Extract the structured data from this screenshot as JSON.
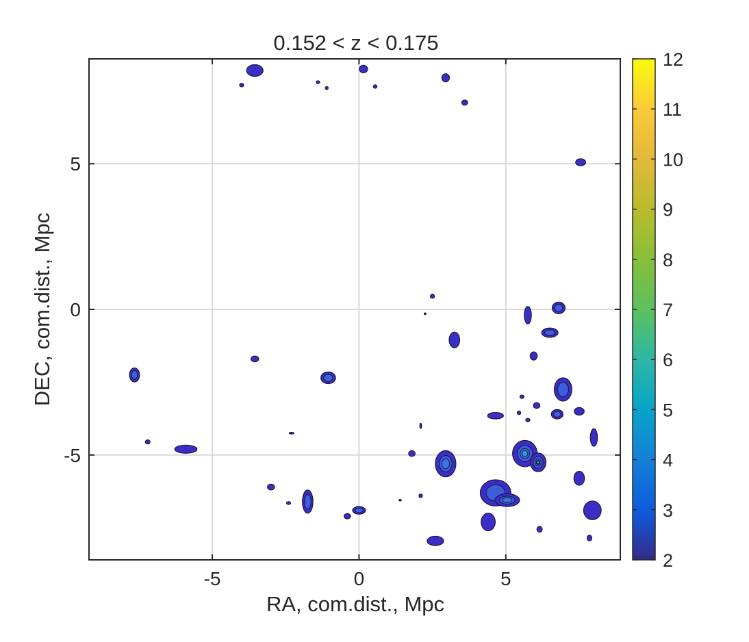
{
  "chart_data": {
    "type": "contour",
    "title": "0.152 < z < 0.175",
    "xlabel": "RA, com.dist., Mpc",
    "ylabel": "DEC, com.dist., Mpc",
    "xlim": [
      -9.2,
      8.9
    ],
    "ylim": [
      -8.6,
      8.6
    ],
    "xticks": [
      -5,
      0,
      5
    ],
    "xtick_labels": [
      "-5",
      "0",
      "5"
    ],
    "yticks": [
      -5,
      0,
      5
    ],
    "ytick_labels": [
      "-5",
      "0",
      "5"
    ],
    "grid": true,
    "colorbar": {
      "min": 2,
      "max": 12,
      "ticks": [
        2,
        3,
        4,
        5,
        6,
        7,
        8,
        9,
        10,
        11,
        12
      ],
      "tick_labels": [
        "2",
        "3",
        "4",
        "5",
        "6",
        "7",
        "8",
        "9",
        "10",
        "11",
        "12"
      ],
      "colormap": "parula"
    },
    "fill_color": "#3b2ec6",
    "outline_color": "#1a1640",
    "peak_color": "#3f7ae8",
    "blobs": [
      {
        "x": -3.55,
        "y": 8.2,
        "rx": 0.28,
        "ry": 0.2,
        "level": 2
      },
      {
        "x": -4.0,
        "y": 7.7,
        "rx": 0.07,
        "ry": 0.06,
        "level": 2
      },
      {
        "x": -1.4,
        "y": 7.8,
        "rx": 0.06,
        "ry": 0.05,
        "level": 2
      },
      {
        "x": -1.1,
        "y": 7.6,
        "rx": 0.05,
        "ry": 0.05,
        "level": 2
      },
      {
        "x": 0.15,
        "y": 8.25,
        "rx": 0.14,
        "ry": 0.13,
        "level": 2
      },
      {
        "x": 0.55,
        "y": 7.65,
        "rx": 0.06,
        "ry": 0.06,
        "level": 2
      },
      {
        "x": 2.95,
        "y": 7.95,
        "rx": 0.13,
        "ry": 0.14,
        "level": 2
      },
      {
        "x": 3.6,
        "y": 7.1,
        "rx": 0.1,
        "ry": 0.09,
        "level": 2
      },
      {
        "x": 7.55,
        "y": 5.05,
        "rx": 0.17,
        "ry": 0.12,
        "level": 2
      },
      {
        "x": 2.5,
        "y": 0.45,
        "rx": 0.07,
        "ry": 0.07,
        "level": 2
      },
      {
        "x": 3.25,
        "y": -1.05,
        "rx": 0.18,
        "ry": 0.27,
        "level": 2
      },
      {
        "x": 5.75,
        "y": -0.2,
        "rx": 0.12,
        "ry": 0.3,
        "level": 2
      },
      {
        "x": 6.8,
        "y": 0.05,
        "rx": 0.22,
        "ry": 0.2,
        "level": 3
      },
      {
        "x": 6.5,
        "y": -0.8,
        "rx": 0.28,
        "ry": 0.16,
        "level": 3
      },
      {
        "x": 5.95,
        "y": -1.6,
        "rx": 0.12,
        "ry": 0.14,
        "level": 2
      },
      {
        "x": -7.65,
        "y": -2.25,
        "rx": 0.17,
        "ry": 0.24,
        "level": 3
      },
      {
        "x": -3.55,
        "y": -1.7,
        "rx": 0.13,
        "ry": 0.1,
        "level": 2
      },
      {
        "x": -1.05,
        "y": -2.35,
        "rx": 0.25,
        "ry": 0.2,
        "level": 3
      },
      {
        "x": 6.95,
        "y": -2.75,
        "rx": 0.3,
        "ry": 0.4,
        "level": 3
      },
      {
        "x": 6.75,
        "y": -3.6,
        "rx": 0.2,
        "ry": 0.16,
        "level": 3
      },
      {
        "x": 6.05,
        "y": -3.3,
        "rx": 0.11,
        "ry": 0.1,
        "level": 2
      },
      {
        "x": 7.5,
        "y": -3.5,
        "rx": 0.17,
        "ry": 0.13,
        "level": 2
      },
      {
        "x": 4.65,
        "y": -3.65,
        "rx": 0.27,
        "ry": 0.11,
        "level": 2
      },
      {
        "x": 5.45,
        "y": -3.55,
        "rx": 0.06,
        "ry": 0.06,
        "level": 2
      },
      {
        "x": 5.75,
        "y": -3.8,
        "rx": 0.07,
        "ry": 0.06,
        "level": 2
      },
      {
        "x": 5.55,
        "y": -3.0,
        "rx": 0.07,
        "ry": 0.06,
        "level": 2
      },
      {
        "x": 8.0,
        "y": -4.4,
        "rx": 0.12,
        "ry": 0.3,
        "level": 2
      },
      {
        "x": -7.2,
        "y": -4.55,
        "rx": 0.08,
        "ry": 0.07,
        "level": 2
      },
      {
        "x": -5.9,
        "y": -4.8,
        "rx": 0.38,
        "ry": 0.14,
        "level": 2
      },
      {
        "x": 1.8,
        "y": -4.95,
        "rx": 0.11,
        "ry": 0.1,
        "level": 2
      },
      {
        "x": 2.95,
        "y": -5.3,
        "rx": 0.35,
        "ry": 0.45,
        "level": 4
      },
      {
        "x": 5.65,
        "y": -4.95,
        "rx": 0.42,
        "ry": 0.45,
        "level": 5
      },
      {
        "x": 6.1,
        "y": -5.25,
        "rx": 0.27,
        "ry": 0.32,
        "level": 6
      },
      {
        "x": 7.5,
        "y": -5.8,
        "rx": 0.18,
        "ry": 0.24,
        "level": 2
      },
      {
        "x": -3.0,
        "y": -6.1,
        "rx": 0.12,
        "ry": 0.1,
        "level": 2
      },
      {
        "x": -1.75,
        "y": -6.6,
        "rx": 0.18,
        "ry": 0.4,
        "level": 3
      },
      {
        "x": -2.4,
        "y": -6.65,
        "rx": 0.07,
        "ry": 0.05,
        "level": 2
      },
      {
        "x": 2.1,
        "y": -6.4,
        "rx": 0.06,
        "ry": 0.06,
        "level": 2
      },
      {
        "x": 0.0,
        "y": -6.9,
        "rx": 0.22,
        "ry": 0.13,
        "level": 3
      },
      {
        "x": -0.4,
        "y": -7.1,
        "rx": 0.11,
        "ry": 0.09,
        "level": 2
      },
      {
        "x": 4.65,
        "y": -6.3,
        "rx": 0.52,
        "ry": 0.45,
        "level": 3
      },
      {
        "x": 5.05,
        "y": -6.55,
        "rx": 0.42,
        "ry": 0.22,
        "level": 4
      },
      {
        "x": 4.4,
        "y": -7.3,
        "rx": 0.24,
        "ry": 0.3,
        "level": 2
      },
      {
        "x": 7.95,
        "y": -6.9,
        "rx": 0.3,
        "ry": 0.32,
        "level": 2
      },
      {
        "x": 6.15,
        "y": -7.55,
        "rx": 0.09,
        "ry": 0.1,
        "level": 2
      },
      {
        "x": 2.6,
        "y": -7.95,
        "rx": 0.28,
        "ry": 0.16,
        "level": 2
      },
      {
        "x": 7.85,
        "y": -7.85,
        "rx": 0.08,
        "ry": 0.1,
        "level": 2
      },
      {
        "x": 2.1,
        "y": -4.0,
        "rx": 0.03,
        "ry": 0.09,
        "level": 2
      },
      {
        "x": 1.4,
        "y": -6.55,
        "rx": 0.04,
        "ry": 0.03,
        "level": 2
      },
      {
        "x": -2.3,
        "y": -4.25,
        "rx": 0.08,
        "ry": 0.03,
        "level": 2
      },
      {
        "x": 2.25,
        "y": -0.15,
        "rx": 0.03,
        "ry": 0.03,
        "level": 2
      }
    ]
  }
}
